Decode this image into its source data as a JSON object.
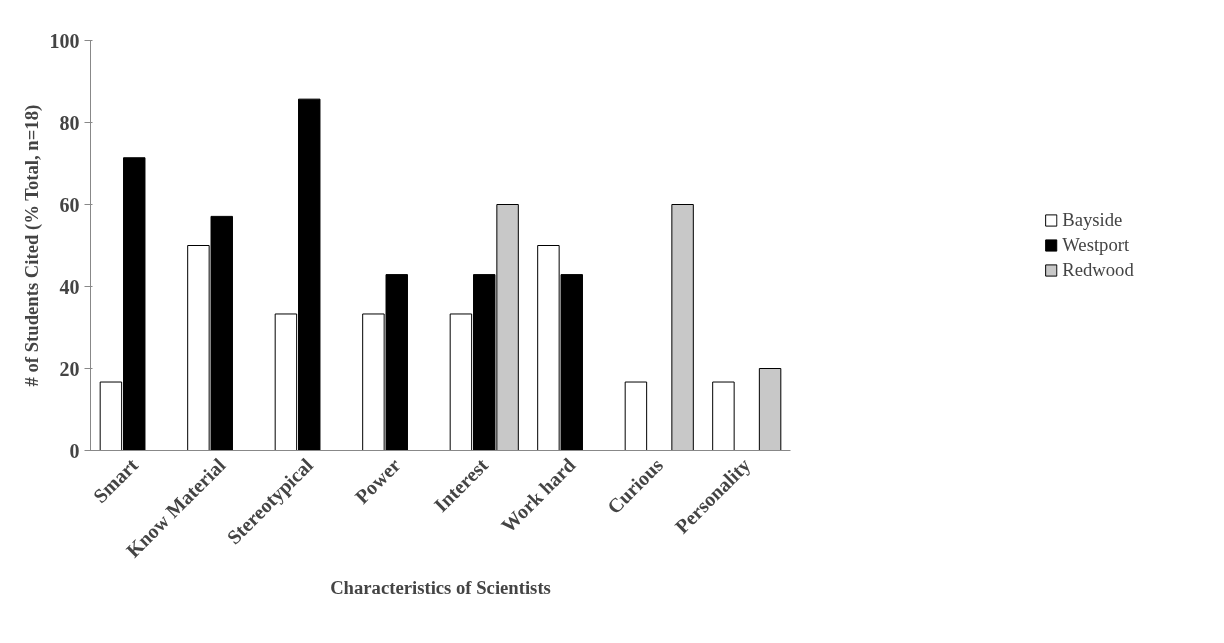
{
  "chart_data": {
    "type": "bar",
    "xlabel": "Characteristics of Scientists",
    "ylabel": "# of Students Cited (% Total, n=18)",
    "categories": [
      "Smart",
      "Know Material",
      "Stereotypical",
      "Power",
      "Interest",
      "Work hard",
      "Curious",
      "Personality"
    ],
    "series": [
      {
        "name": "Bayside",
        "color": "#ffffff",
        "values": [
          16.7,
          50,
          33.3,
          33.3,
          33.3,
          50,
          16.7,
          16.7
        ]
      },
      {
        "name": "Westport",
        "color": "#000000",
        "values": [
          71.4,
          57.1,
          85.7,
          42.9,
          42.9,
          42.9,
          null,
          null
        ]
      },
      {
        "name": "Redwood",
        "color": "#c8c8c8",
        "values": [
          null,
          null,
          null,
          null,
          60,
          null,
          60,
          20
        ]
      }
    ],
    "ylim": [
      0,
      100
    ],
    "yticks": [
      0,
      20,
      40,
      60,
      80,
      100
    ],
    "grid": false,
    "legend": "right"
  }
}
